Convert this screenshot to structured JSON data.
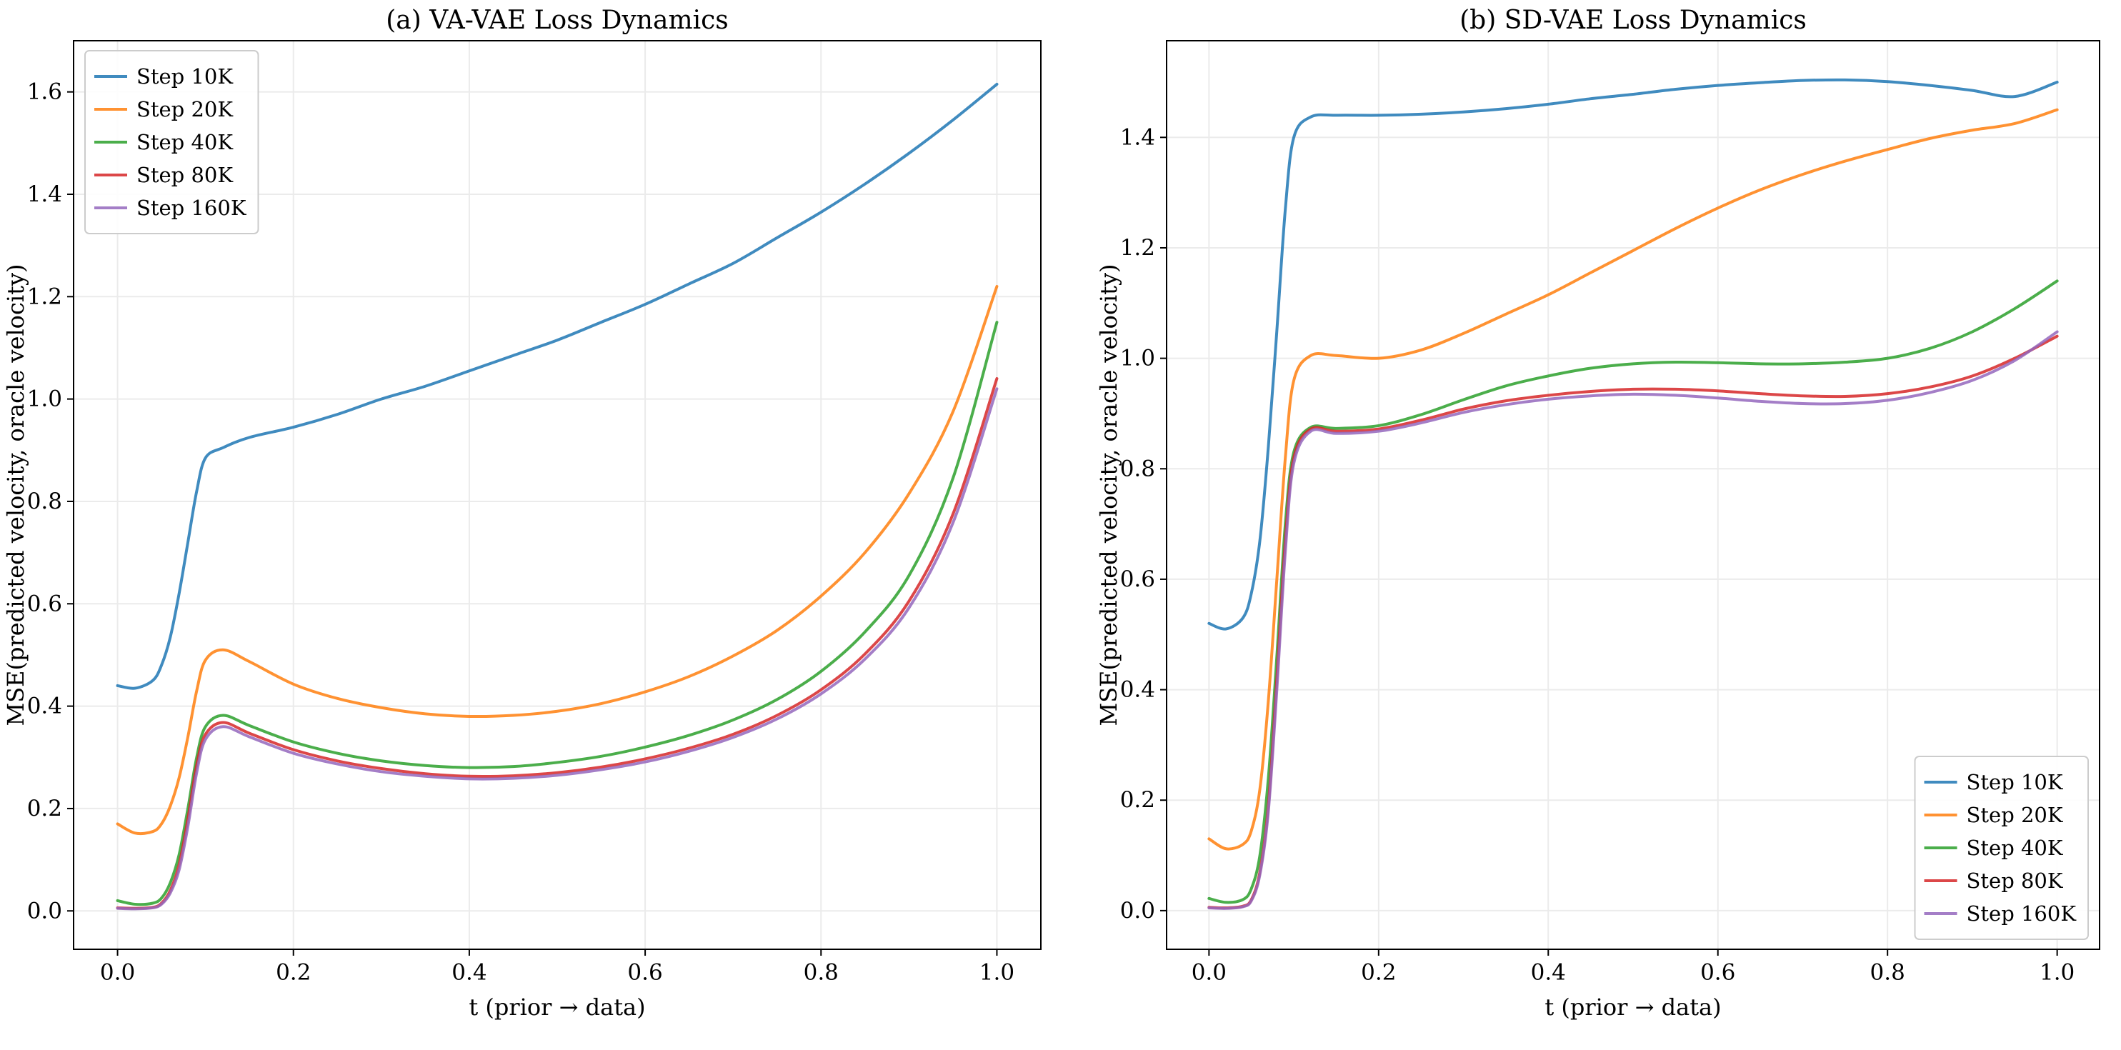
{
  "figure": {
    "background": "#ffffff"
  },
  "style": {
    "axis_color": "#000000",
    "grid_color": "#ebebeb",
    "legend_border_color": "#cccccc",
    "line_width": 4,
    "line_opacity": 0.85,
    "title_font_size": 36,
    "tick_font_size": 31,
    "label_font_size": 32,
    "legend_font_size": 29
  },
  "chart_data": [
    {
      "type": "line",
      "name": "va-vae-loss-dynamics",
      "title": "(a) VA-VAE Loss Dynamics",
      "xlabel": "t (prior → data)",
      "ylabel": "MSE(predicted velocity, oracle velocity)",
      "xlim": [
        -0.05,
        1.05
      ],
      "ylim": [
        -0.075,
        1.7
      ],
      "xticks": [
        0.0,
        0.2,
        0.4,
        0.6,
        0.8,
        1.0
      ],
      "yticks": [
        0.0,
        0.2,
        0.4,
        0.6,
        0.8,
        1.0,
        1.2,
        1.4,
        1.6
      ],
      "grid": true,
      "legend_position": "upper left",
      "x": [
        0.0,
        0.02,
        0.04,
        0.05,
        0.06,
        0.07,
        0.08,
        0.09,
        0.1,
        0.12,
        0.15,
        0.2,
        0.25,
        0.3,
        0.35,
        0.4,
        0.45,
        0.5,
        0.55,
        0.6,
        0.65,
        0.7,
        0.75,
        0.8,
        0.85,
        0.9,
        0.95,
        1.0
      ],
      "series": [
        {
          "name": "Step 10K",
          "color": "#1f77b4",
          "values": [
            0.44,
            0.435,
            0.45,
            0.48,
            0.535,
            0.62,
            0.72,
            0.82,
            0.885,
            0.905,
            0.925,
            0.945,
            0.97,
            1.0,
            1.025,
            1.055,
            1.085,
            1.115,
            1.15,
            1.185,
            1.225,
            1.265,
            1.315,
            1.365,
            1.42,
            1.48,
            1.545,
            1.615
          ]
        },
        {
          "name": "Step 20K",
          "color": "#ff7f0e",
          "values": [
            0.17,
            0.152,
            0.155,
            0.17,
            0.205,
            0.26,
            0.34,
            0.43,
            0.49,
            0.51,
            0.487,
            0.443,
            0.415,
            0.397,
            0.385,
            0.38,
            0.382,
            0.39,
            0.405,
            0.428,
            0.458,
            0.498,
            0.548,
            0.615,
            0.7,
            0.815,
            0.975,
            1.22
          ]
        },
        {
          "name": "Step 40K",
          "color": "#2ca02c",
          "values": [
            0.02,
            0.013,
            0.015,
            0.025,
            0.055,
            0.11,
            0.2,
            0.3,
            0.36,
            0.382,
            0.362,
            0.33,
            0.308,
            0.293,
            0.284,
            0.28,
            0.282,
            0.29,
            0.302,
            0.32,
            0.343,
            0.373,
            0.413,
            0.468,
            0.545,
            0.655,
            0.845,
            1.15
          ]
        },
        {
          "name": "Step 80K",
          "color": "#d62728",
          "values": [
            0.006,
            0.005,
            0.007,
            0.015,
            0.04,
            0.09,
            0.18,
            0.285,
            0.345,
            0.368,
            0.347,
            0.315,
            0.293,
            0.278,
            0.268,
            0.263,
            0.264,
            0.27,
            0.281,
            0.297,
            0.318,
            0.345,
            0.382,
            0.432,
            0.502,
            0.605,
            0.775,
            1.04
          ]
        },
        {
          "name": "Step 160K",
          "color": "#9467bd",
          "values": [
            0.005,
            0.004,
            0.006,
            0.013,
            0.035,
            0.08,
            0.165,
            0.27,
            0.335,
            0.36,
            0.34,
            0.308,
            0.287,
            0.272,
            0.263,
            0.258,
            0.259,
            0.265,
            0.276,
            0.291,
            0.312,
            0.339,
            0.375,
            0.424,
            0.492,
            0.592,
            0.758,
            1.02
          ]
        }
      ]
    },
    {
      "type": "line",
      "name": "sd-vae-loss-dynamics",
      "title": "(b) SD-VAE Loss Dynamics",
      "xlabel": "t (prior → data)",
      "ylabel": "MSE(predicted velocity, oracle velocity)",
      "xlim": [
        -0.05,
        1.05
      ],
      "ylim": [
        -0.07,
        1.575
      ],
      "xticks": [
        0.0,
        0.2,
        0.4,
        0.6,
        0.8,
        1.0
      ],
      "yticks": [
        0.0,
        0.2,
        0.4,
        0.6,
        0.8,
        1.0,
        1.2,
        1.4
      ],
      "grid": true,
      "legend_position": "lower right",
      "x": [
        0.0,
        0.02,
        0.04,
        0.05,
        0.06,
        0.07,
        0.08,
        0.09,
        0.1,
        0.12,
        0.15,
        0.2,
        0.25,
        0.3,
        0.35,
        0.4,
        0.45,
        0.5,
        0.55,
        0.6,
        0.65,
        0.7,
        0.75,
        0.8,
        0.85,
        0.9,
        0.95,
        1.0
      ],
      "series": [
        {
          "name": "Step 10K",
          "color": "#1f77b4",
          "values": [
            0.52,
            0.51,
            0.53,
            0.575,
            0.67,
            0.84,
            1.05,
            1.27,
            1.4,
            1.437,
            1.44,
            1.44,
            1.442,
            1.446,
            1.452,
            1.46,
            1.47,
            1.478,
            1.487,
            1.494,
            1.499,
            1.503,
            1.504,
            1.501,
            1.494,
            1.485,
            1.474,
            1.5
          ]
        },
        {
          "name": "Step 20K",
          "color": "#ff7f0e",
          "values": [
            0.13,
            0.112,
            0.12,
            0.145,
            0.22,
            0.38,
            0.6,
            0.82,
            0.96,
            1.005,
            1.005,
            1.0,
            1.015,
            1.045,
            1.08,
            1.115,
            1.155,
            1.195,
            1.235,
            1.272,
            1.305,
            1.333,
            1.357,
            1.378,
            1.398,
            1.413,
            1.425,
            1.45
          ]
        },
        {
          "name": "Step 40K",
          "color": "#2ca02c",
          "values": [
            0.022,
            0.015,
            0.02,
            0.04,
            0.1,
            0.24,
            0.46,
            0.7,
            0.83,
            0.875,
            0.873,
            0.878,
            0.898,
            0.925,
            0.95,
            0.968,
            0.982,
            0.99,
            0.993,
            0.992,
            0.99,
            0.99,
            0.993,
            1.0,
            1.018,
            1.048,
            1.09,
            1.14
          ]
        },
        {
          "name": "Step 80K",
          "color": "#d62728",
          "values": [
            0.006,
            0.005,
            0.008,
            0.02,
            0.07,
            0.19,
            0.42,
            0.67,
            0.82,
            0.872,
            0.868,
            0.872,
            0.888,
            0.908,
            0.923,
            0.933,
            0.94,
            0.944,
            0.944,
            0.941,
            0.936,
            0.932,
            0.931,
            0.936,
            0.948,
            0.968,
            1.0,
            1.04
          ]
        },
        {
          "name": "Step 160K",
          "color": "#9467bd",
          "values": [
            0.005,
            0.004,
            0.007,
            0.018,
            0.065,
            0.18,
            0.4,
            0.65,
            0.81,
            0.868,
            0.864,
            0.868,
            0.883,
            0.902,
            0.916,
            0.926,
            0.932,
            0.935,
            0.933,
            0.928,
            0.922,
            0.918,
            0.918,
            0.924,
            0.938,
            0.96,
            0.996,
            1.048
          ]
        }
      ]
    }
  ]
}
